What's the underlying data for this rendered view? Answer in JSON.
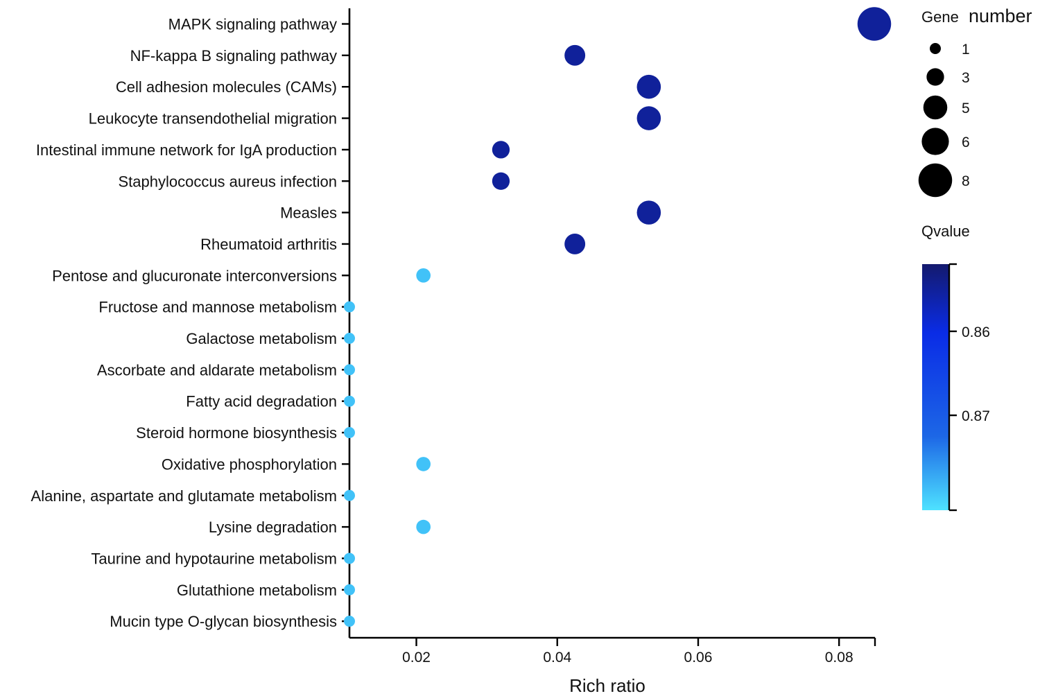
{
  "chart_data": {
    "type": "scatter",
    "subtype": "bubble",
    "x_label": "Rich ratio",
    "x_ticks": [
      0.02,
      0.04,
      0.06,
      0.08
    ],
    "x_tick_labels": [
      "0.02",
      "0.04",
      "0.06",
      "0.08"
    ],
    "xlim": [
      0.0105,
      0.085
    ],
    "categories": [
      {
        "name": "MAPK signaling pathway",
        "rich_ratio": 0.085,
        "gene_number": 8,
        "qvalue": 0.855
      },
      {
        "name": "NF-kappa B signaling pathway",
        "rich_ratio": 0.0425,
        "gene_number": 4,
        "qvalue": 0.855
      },
      {
        "name": "Cell adhesion molecules (CAMs)",
        "rich_ratio": 0.053,
        "gene_number": 5,
        "qvalue": 0.855
      },
      {
        "name": "Leukocyte transendothelial migration",
        "rich_ratio": 0.053,
        "gene_number": 5,
        "qvalue": 0.855
      },
      {
        "name": "Intestinal immune network for IgA production",
        "rich_ratio": 0.032,
        "gene_number": 3,
        "qvalue": 0.855
      },
      {
        "name": "Staphylococcus aureus infection",
        "rich_ratio": 0.032,
        "gene_number": 3,
        "qvalue": 0.855
      },
      {
        "name": "Measles",
        "rich_ratio": 0.053,
        "gene_number": 5,
        "qvalue": 0.855
      },
      {
        "name": "Rheumatoid arthritis",
        "rich_ratio": 0.0425,
        "gene_number": 4,
        "qvalue": 0.855
      },
      {
        "name": "Pentose and glucuronate interconversions",
        "rich_ratio": 0.021,
        "gene_number": 2,
        "qvalue": 0.879
      },
      {
        "name": "Fructose and mannose metabolism",
        "rich_ratio": 0.0105,
        "gene_number": 1,
        "qvalue": 0.879
      },
      {
        "name": "Galactose metabolism",
        "rich_ratio": 0.0105,
        "gene_number": 1,
        "qvalue": 0.879
      },
      {
        "name": "Ascorbate and aldarate metabolism",
        "rich_ratio": 0.0105,
        "gene_number": 1,
        "qvalue": 0.879
      },
      {
        "name": "Fatty acid degradation",
        "rich_ratio": 0.0105,
        "gene_number": 1,
        "qvalue": 0.879
      },
      {
        "name": "Steroid hormone biosynthesis",
        "rich_ratio": 0.0105,
        "gene_number": 1,
        "qvalue": 0.879
      },
      {
        "name": "Oxidative phosphorylation",
        "rich_ratio": 0.021,
        "gene_number": 2,
        "qvalue": 0.879
      },
      {
        "name": "Alanine, aspartate and glutamate metabolism",
        "rich_ratio": 0.0105,
        "gene_number": 1,
        "qvalue": 0.879
      },
      {
        "name": "Lysine degradation",
        "rich_ratio": 0.021,
        "gene_number": 2,
        "qvalue": 0.879
      },
      {
        "name": "Taurine and hypotaurine metabolism",
        "rich_ratio": 0.0105,
        "gene_number": 1,
        "qvalue": 0.879
      },
      {
        "name": "Glutathione metabolism",
        "rich_ratio": 0.0105,
        "gene_number": 1,
        "qvalue": 0.879
      },
      {
        "name": "Mucin type O-glycan biosynthesis",
        "rich_ratio": 0.0105,
        "gene_number": 1,
        "qvalue": 0.879
      }
    ],
    "size_legend": {
      "title_part1": "Gene",
      "title_part2": "number",
      "values": [
        1,
        3,
        5,
        6,
        8
      ],
      "labels": [
        "1",
        "3",
        "5",
        "6",
        "8"
      ]
    },
    "color_legend": {
      "title": "Qvalue",
      "range": [
        0.852,
        0.8813
      ],
      "ticks": [
        0.86,
        0.87
      ],
      "tick_labels": [
        "0.86",
        "0.87"
      ],
      "color_low_q": "#141a6e",
      "color_mid_q": "#0a2ce6",
      "color_high_q": "#4ee2ff"
    },
    "colors": {
      "high_q_marker": "#4fd6f5",
      "low_q_marker": "#141a6e"
    }
  }
}
